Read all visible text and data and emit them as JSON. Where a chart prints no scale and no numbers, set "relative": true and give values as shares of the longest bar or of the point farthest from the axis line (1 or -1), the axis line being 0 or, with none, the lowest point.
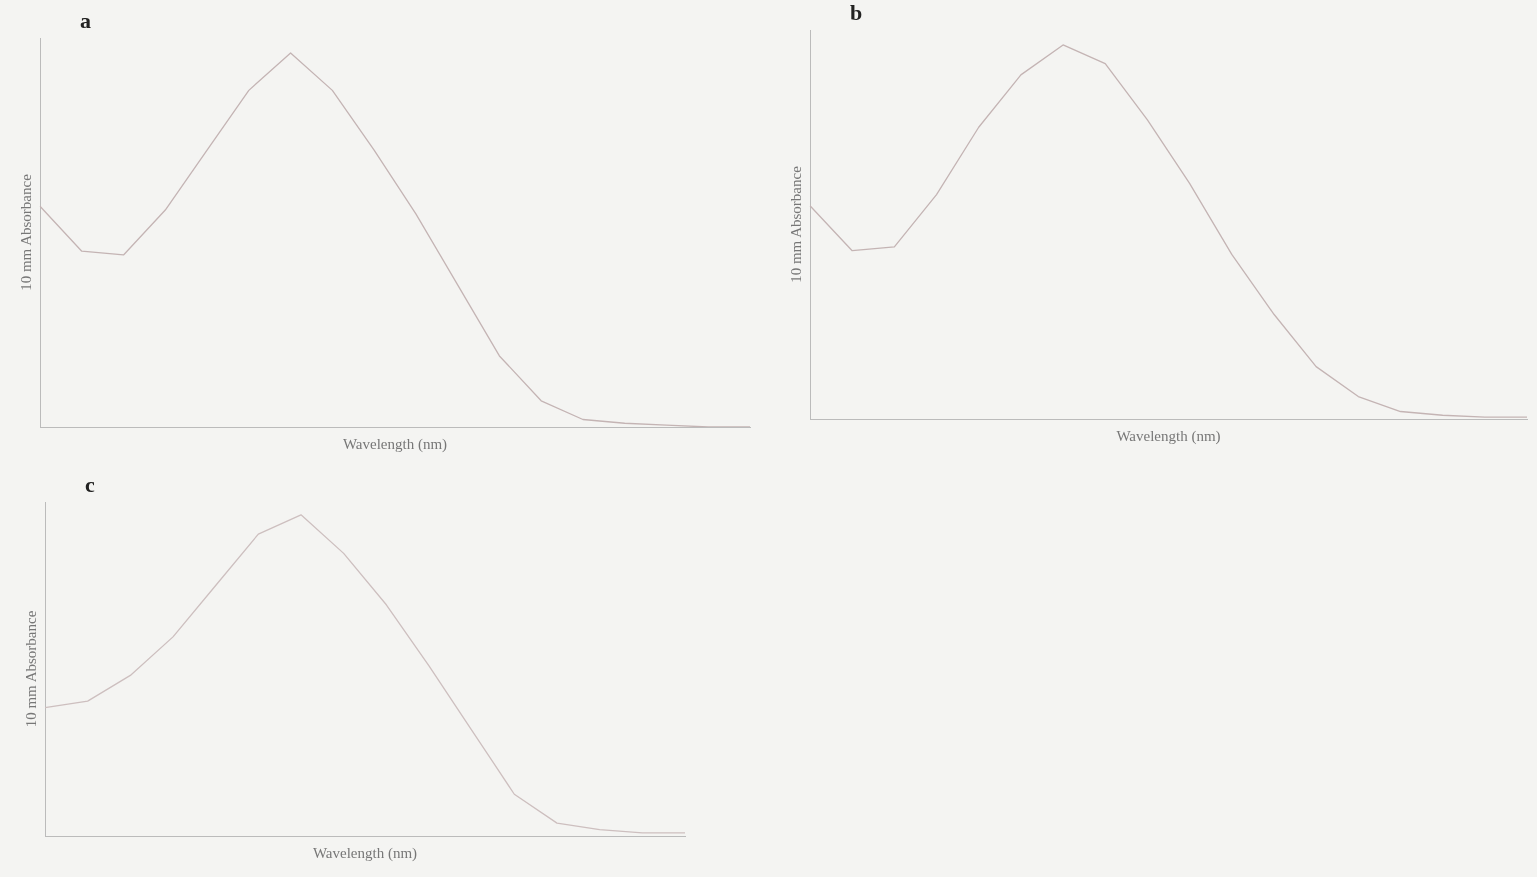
{
  "chart_data": [
    {
      "type": "line",
      "title": "a",
      "xlabel": "Wavelength (nm)",
      "ylabel": "10 mm Absorbance",
      "relative": true,
      "tick_labels": false,
      "grid": false,
      "legend": false,
      "marker": "none",
      "categories": [
        null,
        null,
        null,
        null,
        null,
        null,
        null,
        null,
        null,
        null,
        null,
        null,
        null,
        null,
        null,
        null,
        null,
        null
      ],
      "series": [
        {
          "color": "#c4b4b4",
          "values": [
            0.59,
            0.47,
            0.46,
            0.58,
            0.74,
            0.9,
            1.0,
            0.9,
            0.74,
            0.57,
            0.38,
            0.19,
            0.07,
            0.02,
            0.01,
            0.005,
            0,
            0
          ]
        }
      ]
    },
    {
      "type": "line",
      "title": "b",
      "xlabel": "Wavelength (nm)",
      "ylabel": "10 mm Absorbance",
      "relative": true,
      "tick_labels": false,
      "grid": false,
      "legend": false,
      "marker": "none",
      "categories": [
        null,
        null,
        null,
        null,
        null,
        null,
        null,
        null,
        null,
        null,
        null,
        null,
        null,
        null,
        null,
        null,
        null,
        null
      ],
      "series": [
        {
          "color": "#c4b4b4",
          "values": [
            0.57,
            0.45,
            0.46,
            0.6,
            0.78,
            0.92,
            1.0,
            0.95,
            0.8,
            0.63,
            0.44,
            0.28,
            0.14,
            0.06,
            0.02,
            0.01,
            0.005,
            0.005
          ]
        }
      ]
    },
    {
      "type": "line",
      "title": "c",
      "xlabel": "Wavelength (nm)",
      "ylabel": "10 mm Absorbance",
      "relative": true,
      "tick_labels": false,
      "grid": false,
      "legend": false,
      "marker": "none",
      "categories": [
        null,
        null,
        null,
        null,
        null,
        null,
        null,
        null,
        null,
        null,
        null,
        null,
        null,
        null,
        null,
        null
      ],
      "series": [
        {
          "color": "#cdbfbf",
          "values": [
            0.4,
            0.42,
            0.5,
            0.62,
            0.78,
            0.94,
            1.0,
            0.88,
            0.72,
            0.53,
            0.33,
            0.13,
            0.04,
            0.02,
            0.01,
            0.01
          ]
        }
      ]
    }
  ]
}
